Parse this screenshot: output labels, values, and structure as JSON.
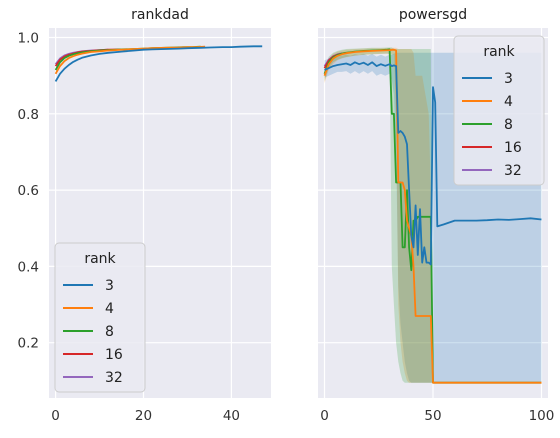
{
  "chart_data": [
    {
      "type": "line",
      "title": "rankdad",
      "xlim": [
        -1.5,
        49
      ],
      "ylim": [
        0.055,
        1.025
      ],
      "xticks": [
        0,
        20,
        40
      ],
      "yticks": [
        0.2,
        0.4,
        0.6,
        0.8,
        1.0
      ],
      "ytick_labels": [
        "0.2",
        "0.4",
        "0.6",
        "0.8",
        "1.0"
      ],
      "xtick_labels": [
        "0",
        "20",
        "40"
      ],
      "grid": true,
      "legend": {
        "title": "rank",
        "placement": "lower-left",
        "entries": [
          "3",
          "4",
          "8",
          "16",
          "32"
        ]
      },
      "series": [
        {
          "name": "3",
          "color": "#1f77b4",
          "x": [
            0,
            1,
            2,
            3,
            4,
            5,
            6,
            8,
            10,
            12,
            15,
            18,
            20,
            22,
            25,
            28,
            30,
            33,
            35,
            38,
            40,
            42,
            45,
            47
          ],
          "y": [
            0.885,
            0.905,
            0.918,
            0.928,
            0.936,
            0.942,
            0.947,
            0.953,
            0.957,
            0.96,
            0.963,
            0.966,
            0.968,
            0.969,
            0.97,
            0.971,
            0.972,
            0.973,
            0.974,
            0.975,
            0.975,
            0.976,
            0.977,
            0.977
          ]
        },
        {
          "name": "4",
          "color": "#ff7f0e",
          "x": [
            0,
            1,
            2,
            3,
            4,
            5,
            6,
            8,
            10,
            12,
            15,
            18,
            20,
            22,
            25,
            28,
            30,
            32,
            34
          ],
          "y": [
            0.905,
            0.925,
            0.938,
            0.946,
            0.951,
            0.955,
            0.958,
            0.962,
            0.964,
            0.966,
            0.968,
            0.97,
            0.971,
            0.972,
            0.973,
            0.974,
            0.975,
            0.975,
            0.976
          ]
        },
        {
          "name": "8",
          "color": "#2ca02c",
          "x": [
            0,
            1,
            2,
            3,
            4,
            5,
            6,
            8,
            10,
            12,
            15,
            18,
            20,
            22,
            25,
            27,
            29,
            31,
            33
          ],
          "y": [
            0.915,
            0.935,
            0.946,
            0.952,
            0.956,
            0.959,
            0.961,
            0.964,
            0.966,
            0.967,
            0.969,
            0.97,
            0.971,
            0.972,
            0.973,
            0.974,
            0.975,
            0.975,
            0.976
          ]
        },
        {
          "name": "16",
          "color": "#d62728",
          "x": [
            0,
            1,
            2,
            3,
            4,
            5,
            6,
            8,
            10,
            12,
            15
          ],
          "y": [
            0.925,
            0.942,
            0.95,
            0.955,
            0.958,
            0.961,
            0.963,
            0.965,
            0.967,
            0.968,
            0.969
          ]
        },
        {
          "name": "32",
          "color": "#9467bd",
          "x": [
            0,
            1,
            2,
            3,
            4,
            5,
            6,
            8,
            10,
            12
          ],
          "y": [
            0.93,
            0.945,
            0.953,
            0.957,
            0.96,
            0.962,
            0.964,
            0.966,
            0.967,
            0.968
          ]
        }
      ]
    },
    {
      "type": "line",
      "title": "powersgd",
      "xlim": [
        -3,
        103
      ],
      "ylim": [
        0.055,
        1.025
      ],
      "xticks": [
        0,
        50,
        100
      ],
      "xtick_labels": [
        "0",
        "50",
        "100"
      ],
      "yticks": [
        0.2,
        0.4,
        0.6,
        0.8,
        1.0
      ],
      "ytick_labels": [],
      "grid": true,
      "legend": {
        "title": "rank",
        "placement": "upper-right",
        "entries": [
          "3",
          "4",
          "8",
          "16",
          "32"
        ]
      },
      "series": [
        {
          "name": "3",
          "color": "#1f77b4",
          "x": [
            0,
            2,
            4,
            6,
            8,
            10,
            12,
            14,
            16,
            18,
            20,
            22,
            24,
            26,
            28,
            30,
            31,
            32,
            33,
            34,
            35,
            36,
            37,
            38,
            39,
            40,
            41,
            42,
            43,
            44,
            45,
            46,
            47,
            48,
            49,
            50,
            51,
            52,
            55,
            60,
            65,
            70,
            75,
            80,
            85,
            90,
            95,
            100
          ],
          "y": [
            0.915,
            0.92,
            0.925,
            0.928,
            0.93,
            0.932,
            0.928,
            0.935,
            0.93,
            0.934,
            0.928,
            0.935,
            0.925,
            0.93,
            0.926,
            0.93,
            0.925,
            0.927,
            0.925,
            0.75,
            0.755,
            0.75,
            0.74,
            0.72,
            0.6,
            0.48,
            0.45,
            0.56,
            0.43,
            0.55,
            0.41,
            0.45,
            0.41,
            0.41,
            0.405,
            0.87,
            0.83,
            0.505,
            0.51,
            0.52,
            0.52,
            0.52,
            0.521,
            0.523,
            0.522,
            0.524,
            0.526,
            0.523
          ],
          "band_low": [
            0.895,
            0.9,
            0.905,
            0.91,
            0.91,
            0.912,
            0.905,
            0.912,
            0.905,
            0.912,
            0.905,
            0.912,
            0.9,
            0.905,
            0.9,
            0.905,
            0.89,
            0.85,
            0.7,
            0.35,
            0.25,
            0.2,
            0.15,
            0.12,
            0.1,
            0.095,
            0.095,
            0.095,
            0.095,
            0.095,
            0.095,
            0.095,
            0.095,
            0.095,
            0.095,
            0.095,
            0.095,
            0.095,
            0.095,
            0.095,
            0.095,
            0.095,
            0.095,
            0.095,
            0.095,
            0.095,
            0.095,
            0.095
          ],
          "band_high": [
            0.94,
            0.945,
            0.948,
            0.95,
            0.952,
            0.955,
            0.952,
            0.956,
            0.954,
            0.957,
            0.952,
            0.957,
            0.95,
            0.955,
            0.95,
            0.955,
            0.955,
            0.958,
            0.96,
            0.96,
            0.96,
            0.96,
            0.96,
            0.96,
            0.96,
            0.96,
            0.96,
            0.96,
            0.96,
            0.96,
            0.96,
            0.96,
            0.96,
            0.96,
            0.96,
            0.96,
            0.96,
            0.96,
            0.96,
            0.96,
            0.96,
            0.96,
            0.96,
            0.96,
            0.96,
            0.96,
            0.96,
            0.96
          ]
        },
        {
          "name": "4",
          "color": "#ff7f0e",
          "x": [
            0,
            2,
            4,
            6,
            8,
            10,
            14,
            18,
            22,
            26,
            30,
            32,
            33,
            34,
            35,
            36,
            37,
            38,
            39,
            40,
            41,
            42,
            45,
            48,
            49,
            50,
            55,
            60,
            70,
            80,
            90,
            100
          ],
          "y": [
            0.9,
            0.93,
            0.945,
            0.952,
            0.956,
            0.959,
            0.962,
            0.964,
            0.965,
            0.966,
            0.967,
            0.968,
            0.966,
            0.62,
            0.62,
            0.62,
            0.6,
            0.52,
            0.5,
            0.48,
            0.4,
            0.27,
            0.27,
            0.27,
            0.27,
            0.095,
            0.095,
            0.095,
            0.095,
            0.095,
            0.095,
            0.095
          ],
          "band_low": [
            0.88,
            0.915,
            0.93,
            0.94,
            0.945,
            0.948,
            0.952,
            0.955,
            0.956,
            0.957,
            0.958,
            0.955,
            0.8,
            0.3,
            0.2,
            0.15,
            0.12,
            0.1,
            0.095,
            0.095,
            0.095,
            0.095,
            0.095,
            0.095,
            0.095,
            0.095,
            0.095,
            0.095,
            0.095,
            0.095,
            0.095,
            0.095
          ],
          "band_high": [
            0.92,
            0.945,
            0.958,
            0.963,
            0.966,
            0.968,
            0.97,
            0.971,
            0.972,
            0.972,
            0.973,
            0.973,
            0.973,
            0.97,
            0.97,
            0.97,
            0.97,
            0.97,
            0.97,
            0.97,
            0.96,
            0.9,
            0.9,
            0.8,
            0.6,
            0.095,
            0.095,
            0.095,
            0.095,
            0.095,
            0.095,
            0.095
          ]
        },
        {
          "name": "8",
          "color": "#2ca02c",
          "x": [
            0,
            2,
            4,
            6,
            8,
            10,
            14,
            18,
            22,
            26,
            29,
            30,
            31,
            32,
            33,
            34,
            35,
            36,
            37,
            38,
            39,
            40,
            41,
            42,
            43,
            44,
            45,
            46,
            47,
            48,
            49,
            50,
            52,
            55,
            60,
            70,
            80,
            90,
            100
          ],
          "y": [
            0.905,
            0.935,
            0.948,
            0.954,
            0.958,
            0.96,
            0.963,
            0.965,
            0.966,
            0.967,
            0.968,
            0.969,
            0.8,
            0.8,
            0.62,
            0.62,
            0.62,
            0.45,
            0.45,
            0.6,
            0.45,
            0.39,
            0.52,
            0.52,
            0.53,
            0.53,
            0.53,
            0.53,
            0.53,
            0.53,
            0.53,
            0.095,
            0.095,
            0.095,
            0.095,
            0.095,
            0.095,
            0.095,
            0.095
          ],
          "band_low": [
            0.885,
            0.92,
            0.935,
            0.942,
            0.946,
            0.949,
            0.953,
            0.955,
            0.956,
            0.957,
            0.958,
            0.955,
            0.4,
            0.3,
            0.2,
            0.15,
            0.12,
            0.1,
            0.095,
            0.095,
            0.095,
            0.095,
            0.095,
            0.095,
            0.095,
            0.095,
            0.095,
            0.095,
            0.095,
            0.095,
            0.095,
            0.095,
            0.095,
            0.095,
            0.095,
            0.095,
            0.095,
            0.095,
            0.095
          ],
          "band_high": [
            0.925,
            0.95,
            0.96,
            0.965,
            0.968,
            0.97,
            0.971,
            0.972,
            0.973,
            0.973,
            0.974,
            0.974,
            0.974,
            0.97,
            0.97,
            0.97,
            0.97,
            0.97,
            0.97,
            0.97,
            0.97,
            0.97,
            0.97,
            0.97,
            0.97,
            0.97,
            0.97,
            0.97,
            0.97,
            0.97,
            0.97,
            0.095,
            0.095,
            0.095,
            0.095,
            0.095,
            0.095,
            0.095,
            0.095
          ]
        },
        {
          "name": "16",
          "color": "#d62728",
          "x": [
            0,
            2,
            4,
            6,
            8,
            10
          ],
          "y": [
            0.92,
            0.94,
            0.95,
            0.955,
            0.958,
            0.96
          ]
        },
        {
          "name": "32",
          "color": "#9467bd",
          "x": [
            0,
            2,
            4,
            6,
            8
          ],
          "y": [
            0.925,
            0.942,
            0.951,
            0.956,
            0.959
          ]
        }
      ]
    }
  ]
}
